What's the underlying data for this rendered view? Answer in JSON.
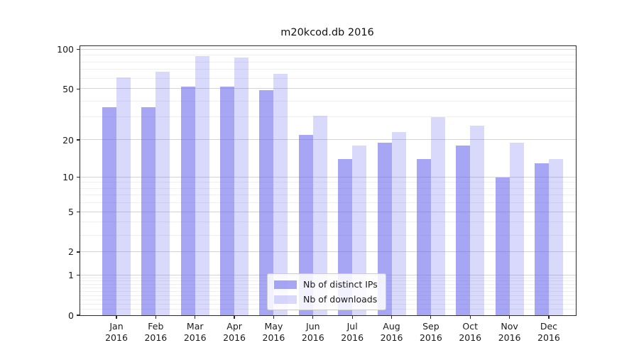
{
  "title": "m20kcod.db 2016",
  "colors": {
    "bar_base": "#6666ee",
    "ips_fill": "rgba(102,102,238,0.58)",
    "downloads_fill": "rgba(102,102,238,0.25)",
    "grid_major": "#d4d4d4",
    "grid_minor": "#efefef"
  },
  "y_axis": {
    "tick_values": [
      0,
      1,
      2,
      5,
      10,
      20,
      50,
      100
    ],
    "tick_labels": [
      "0",
      "1",
      "2",
      "5",
      "10",
      "20",
      "50",
      "100"
    ],
    "minor_gridline_values": [
      0.1,
      0.2,
      0.3,
      0.4,
      0.5,
      0.6,
      0.7,
      0.8,
      0.9,
      3,
      4,
      6,
      7,
      8,
      9,
      30,
      40,
      60,
      70,
      80,
      90
    ]
  },
  "x_axis": {
    "year": "2016",
    "months": [
      "Jan",
      "Feb",
      "Mar",
      "Apr",
      "May",
      "Jun",
      "Jul",
      "Aug",
      "Sep",
      "Oct",
      "Nov",
      "Dec"
    ]
  },
  "legend": {
    "items": [
      {
        "label": "Nb of distinct IPs",
        "series": "ips"
      },
      {
        "label": "Nb of downloads",
        "series": "downloads"
      }
    ]
  },
  "chart_data": {
    "type": "bar",
    "title": "m20kcod.db 2016",
    "categories": [
      "Jan 2016",
      "Feb 2016",
      "Mar 2016",
      "Apr 2016",
      "May 2016",
      "Jun 2016",
      "Jul 2016",
      "Aug 2016",
      "Sep 2016",
      "Oct 2016",
      "Nov 2016",
      "Dec 2016"
    ],
    "series": [
      {
        "name": "Nb of distinct IPs",
        "values": [
          36,
          36,
          52,
          52,
          49,
          22,
          14,
          19,
          14,
          18,
          10,
          13
        ]
      },
      {
        "name": "Nb of downloads",
        "values": [
          61,
          68,
          89,
          87,
          65,
          31,
          18,
          23,
          30,
          26,
          19,
          14
        ]
      }
    ],
    "xlabel": "",
    "ylabel": "",
    "y_scale": "log1p",
    "y_ticks": [
      0,
      1,
      2,
      5,
      10,
      20,
      50,
      100
    ],
    "ylim": [
      0,
      106
    ],
    "grid": true,
    "legend_position": "lower center"
  }
}
